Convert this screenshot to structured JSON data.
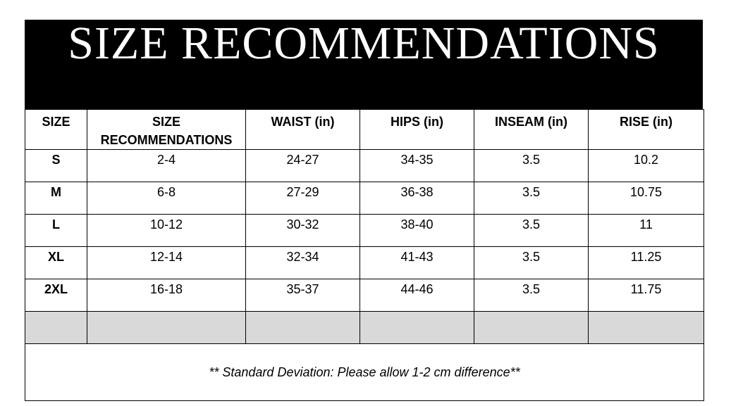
{
  "title": "SIZE RECOMMENDATIONS",
  "headers": [
    "SIZE",
    "SIZE RECOMMENDATIONS",
    "WAIST (in)",
    "HIPS (in)",
    "INSEAM (in)",
    "RISE (in)"
  ],
  "rows": [
    [
      "S",
      "2-4",
      "24-27",
      "34-35",
      "3.5",
      "10.2"
    ],
    [
      "M",
      "6-8",
      "27-29",
      "36-38",
      "3.5",
      "10.75"
    ],
    [
      "L",
      "10-12",
      "30-32",
      "38-40",
      "3.5",
      "11"
    ],
    [
      "XL",
      "12-14",
      "32-34",
      "41-43",
      "3.5",
      "11.25"
    ],
    [
      "2XL",
      "16-18",
      "35-37",
      "44-46",
      "3.5",
      "11.75"
    ]
  ],
  "footer_note": "** Standard Deviation: Please allow 1-2 cm difference**",
  "colors": {
    "banner": "#000000",
    "empty_row": "#d9d9d9"
  }
}
